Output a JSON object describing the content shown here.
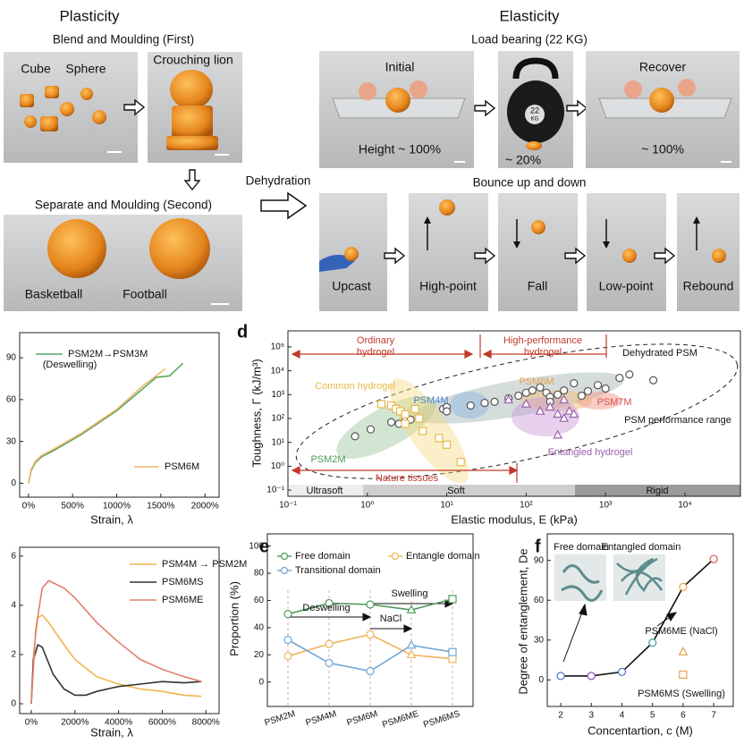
{
  "photos": {
    "plasticity": "Plasticity",
    "blend": "Blend and Moulding (First)",
    "cube": "Cube",
    "sphere": "Sphere",
    "lion": "Crouching lion",
    "separate": "Separate and Moulding (Second)",
    "basketball": "Basketball",
    "football": "Football",
    "dehydration": "Dehydration",
    "elasticity": "Elasticity",
    "load": "Load bearing (22 KG)",
    "initial": "Initial",
    "height": "Height ~ 100%",
    "weight_num": "22",
    "weight_unit": "KG",
    "compressed": "~ 20%",
    "recover": "Recover",
    "recovered": "~ 100%",
    "bounce": "Bounce up and down",
    "upcast": "Upcast",
    "high": "High-point",
    "fall": "Fall",
    "low": "Low-point",
    "rebound": "Rebound"
  },
  "chart_data": [
    {
      "type": "line",
      "x_label": "Strain, λ",
      "xlim": [
        -100,
        2160
      ],
      "xticks": [
        {
          "value": 0,
          "label": "0%"
        },
        {
          "value": 500,
          "label": "500%"
        },
        {
          "value": 1000,
          "label": "1000%"
        },
        {
          "value": 1500,
          "label": "1500%"
        },
        {
          "value": 2000,
          "label": "2000%"
        }
      ],
      "ylim": [
        -10,
        108
      ],
      "yticks": [
        0,
        30,
        60,
        90
      ],
      "annotations": [
        "(Deswelling)"
      ],
      "series": [
        {
          "name": "PSM2M→PSM3M",
          "color": "#5aa85e",
          "x": [
            0,
            30,
            80,
            150,
            300,
            600,
            1000,
            1300,
            1450,
            1600,
            1750
          ],
          "values": [
            0,
            9,
            15,
            19,
            24,
            35,
            52,
            68,
            76,
            77,
            86
          ]
        },
        {
          "name": "PSM6M",
          "color": "#f2b66d",
          "x": [
            0,
            30,
            80,
            150,
            300,
            600,
            1000,
            1300,
            1550
          ],
          "values": [
            0,
            10,
            16,
            20,
            25,
            36,
            53,
            70,
            82
          ]
        }
      ]
    },
    {
      "type": "scatter",
      "panel": "d",
      "x_label": "Elastic modulus, E (kPa)",
      "y_label": "Toughness, Γ (kJ/m³)",
      "xlog": true,
      "ylog": true,
      "xlim": [
        0.1,
        50000
      ],
      "ylim": [
        0.055,
        470000
      ],
      "xticks": [
        {
          "value": 0.1,
          "label": "10⁻¹"
        },
        {
          "value": 1,
          "label": "10⁰"
        },
        {
          "value": 10,
          "label": "10¹"
        },
        {
          "value": 100,
          "label": "10²"
        },
        {
          "value": 1000,
          "label": "10³"
        },
        {
          "value": 10000,
          "label": "10⁴"
        }
      ],
      "yticks": [
        {
          "value": 0.1,
          "label": "10⁻¹"
        },
        {
          "value": 1,
          "label": "10⁰"
        },
        {
          "value": 10,
          "label": "10¹"
        },
        {
          "value": 100,
          "label": "10²"
        },
        {
          "value": 1000,
          "label": "10³"
        },
        {
          "value": 10000,
          "label": "10⁴"
        },
        {
          "value": 100000,
          "label": "10⁵"
        }
      ],
      "annotations": [
        "Ordinary",
        "hydrogel",
        "High-performance",
        "hydrogel",
        "PSM4M",
        "PSM6M",
        "PSM7M",
        "PSM2M",
        "PSM performance range",
        "Nature tissues",
        "Ultrasoft",
        "Soft",
        "Rigid"
      ],
      "series": [
        {
          "name": "Dehydrated PSM",
          "marker": "circle",
          "color": "#555555",
          "x": [
            0.7,
            1.1,
            2,
            2.5,
            3,
            3.5,
            9,
            10,
            10,
            20,
            30,
            40,
            60,
            80,
            100,
            120,
            150,
            180,
            200,
            250,
            300,
            400,
            500,
            600,
            800,
            1000,
            1500,
            2000,
            4000,
            200
          ],
          "values": [
            18,
            35,
            70,
            60,
            110,
            90,
            250,
            300,
            200,
            350,
            450,
            500,
            700,
            900,
            1200,
            1500,
            2000,
            1200,
            800,
            1000,
            1500,
            3000,
            900,
            1400,
            2500,
            1800,
            5000,
            7000,
            4000,
            500
          ]
        },
        {
          "name": "Common hydrogel",
          "marker": "square",
          "color": "#e8b84a",
          "x": [
            1.5,
            2,
            2.3,
            2.6,
            3,
            4,
            4.5,
            3,
            8,
            10,
            15,
            5
          ],
          "values": [
            400,
            350,
            250,
            200,
            150,
            250,
            100,
            60,
            15,
            8,
            1.5,
            30
          ]
        },
        {
          "name": "Entangled hydrogel",
          "marker": "triangle",
          "color": "#9c5fae",
          "x": [
            60,
            100,
            150,
            200,
            250,
            300,
            350,
            250,
            400,
            300
          ],
          "values": [
            600,
            400,
            200,
            300,
            150,
            100,
            200,
            20,
            150,
            600
          ]
        }
      ]
    },
    {
      "type": "line",
      "x_label": "Strain, λ",
      "xlim": [
        -533,
        8606
      ],
      "xticks": [
        {
          "value": 0,
          "label": "0%"
        },
        {
          "value": 2000,
          "label": "2000%"
        },
        {
          "value": 4000,
          "label": "4000%"
        },
        {
          "value": 6000,
          "label": "6000%"
        },
        {
          "value": 8000,
          "label": "8000%"
        }
      ],
      "ylim": [
        -0.4,
        6.36
      ],
      "yticks": [
        0,
        2,
        4,
        6
      ],
      "series": [
        {
          "name": "PSM4M → PSM2M",
          "color": "#f0b44c",
          "x": [
            0,
            100,
            300,
            500,
            800,
            1500,
            2000,
            3000,
            4000,
            5000,
            6000,
            7000,
            7800
          ],
          "values": [
            0,
            2,
            3.5,
            3.6,
            3.3,
            2.4,
            1.8,
            1.1,
            0.8,
            0.6,
            0.5,
            0.35,
            0.3
          ]
        },
        {
          "name": "PSM6MS",
          "color": "#333333",
          "x": [
            0,
            100,
            300,
            500,
            1000,
            1500,
            2000,
            2500,
            3000,
            4000,
            5000,
            6000,
            7000,
            7800
          ],
          "values": [
            0,
            1.8,
            2.4,
            2.3,
            1.2,
            0.6,
            0.35,
            0.35,
            0.5,
            0.7,
            0.8,
            0.9,
            0.85,
            0.9
          ]
        },
        {
          "name": "PSM6ME",
          "color": "#e0806f",
          "x": [
            0,
            200,
            500,
            800,
            1500,
            2000,
            3000,
            4000,
            5000,
            6000,
            7000,
            7800
          ],
          "values": [
            0,
            3,
            4.7,
            5,
            4.7,
            4.3,
            3.3,
            2.5,
            1.8,
            1.4,
            1.1,
            0.9
          ]
        }
      ]
    },
    {
      "type": "line",
      "panel": "e",
      "y_label": "Proportion (%)",
      "categories": [
        "PSM2M",
        "PSM4M",
        "PSM6M",
        "PSM6ME",
        "PSM6MS"
      ],
      "markers": [
        "circle",
        "circle",
        "circle",
        "triangle",
        "square"
      ],
      "ylim": [
        -18,
        109
      ],
      "yticks": [
        0,
        20,
        40,
        60,
        80,
        100
      ],
      "annotations": [
        "Deswelling",
        "Swelling",
        "NaCl"
      ],
      "series": [
        {
          "name": "Free domain",
          "color": "#4e9a57",
          "values": [
            50,
            58,
            57,
            53,
            61
          ]
        },
        {
          "name": "Entangle domain",
          "color": "#f0b35c",
          "values": [
            19,
            28,
            35,
            20,
            17
          ]
        },
        {
          "name": "Transitional domain",
          "color": "#6ea7d6",
          "values": [
            31,
            14,
            8,
            27,
            22
          ]
        }
      ]
    },
    {
      "type": "line",
      "panel": "f",
      "x_label": "Concentartion, c (M)",
      "y_label": "Degree of entanglement, De",
      "xlim": [
        1.56,
        7.64
      ],
      "xticks": [
        2,
        3,
        4,
        5,
        6,
        7
      ],
      "ylim": [
        -20,
        110
      ],
      "yticks": [
        0,
        30,
        60,
        90
      ],
      "annotations": [
        "Free domain",
        "Entangled domain"
      ],
      "series": [
        {
          "color": "#111111",
          "marker": "circle",
          "point_colors": [
            "#4a78c9",
            "#8b4fb0",
            "#4a78c9",
            "#3f9fa6",
            "#e6a24a",
            "#d9534f"
          ],
          "x": [
            2,
            3,
            4,
            5,
            6,
            7
          ],
          "values": [
            3,
            3,
            6,
            28,
            70,
            91
          ]
        },
        {
          "name": "PSM6ME (NaCl)",
          "color": "#e6a24a",
          "marker": "triangle",
          "line": false,
          "x": [
            6
          ],
          "values": [
            21
          ]
        },
        {
          "name": "PSM6MS (Swelling)",
          "color": "#e6a24a",
          "marker": "square",
          "line": false,
          "x": [
            6
          ],
          "values": [
            4
          ]
        }
      ]
    }
  ]
}
